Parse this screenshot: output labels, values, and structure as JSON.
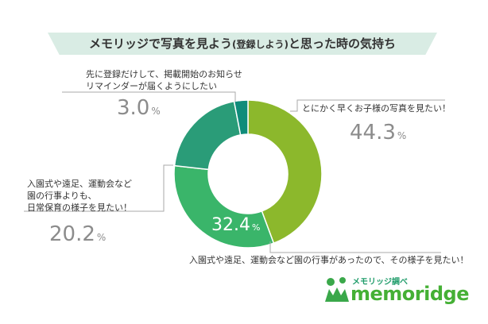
{
  "chart_data": {
    "type": "pie",
    "donut": true,
    "title": "メモリッジで写真を見よう",
    "title_paren": "(登録しよう)",
    "title_suffix": "と思った時の気持ち",
    "unit": "%",
    "slices": [
      {
        "key": "s1",
        "label": "とにかく早くお子様の写真を見たい！",
        "value": 44.3,
        "value_text": "44.3",
        "color": "#8cb82c"
      },
      {
        "key": "s2",
        "label": "入園式や遠足、運動会など園の行事があったので、その様子を見たい！",
        "value": 32.4,
        "value_text": "32.4",
        "color": "#3ab56a"
      },
      {
        "key": "s3",
        "label_lines": [
          "入園式や遠足、運動会など",
          "園の行事よりも、",
          "日常保育の様子を見たい！"
        ],
        "value": 20.2,
        "value_text": "20.2",
        "color": "#2a9c78"
      },
      {
        "key": "s4",
        "label_lines": [
          "先に登録だけして、掲載開始のお知らせ",
          "リマインダーが届くようにしたい"
        ],
        "value": 3.0,
        "value_text": "3.0",
        "color": "#0f8c7a"
      }
    ]
  },
  "logo": {
    "sub": "メモリッジ調べ",
    "main": "memoridge",
    "colors": {
      "main": "#45b035",
      "sub": "#1f9c6a",
      "mark": "#3aa84a"
    }
  }
}
